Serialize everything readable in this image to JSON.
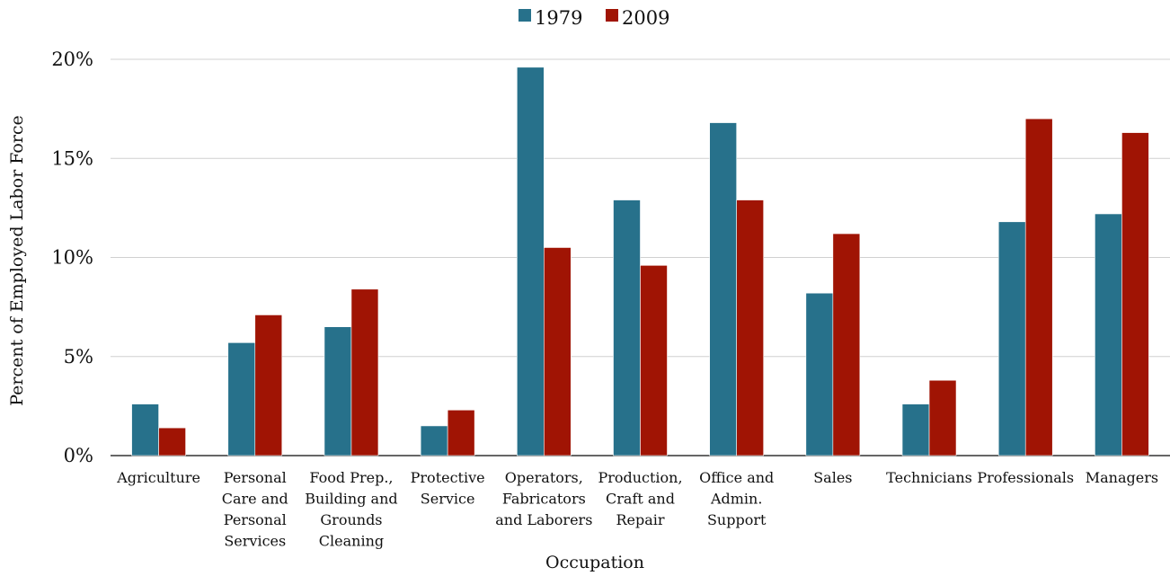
{
  "chart_data": {
    "type": "bar",
    "title": "",
    "xlabel": "Occupation",
    "ylabel": "Percent of  Employed Labor Force",
    "ylim": [
      0,
      20
    ],
    "yticks": [
      0,
      5,
      10,
      15,
      20
    ],
    "ytick_labels": [
      "0%",
      "5%",
      "10%",
      "15%",
      "20%"
    ],
    "grid": true,
    "legend_position": "top-center",
    "categories": [
      [
        "Agriculture"
      ],
      [
        "Personal",
        "Care and",
        "Personal",
        "Services"
      ],
      [
        "Food Prep.,",
        "Building and",
        "Grounds",
        "Cleaning"
      ],
      [
        "Protective",
        "Service"
      ],
      [
        "Operators,",
        "Fabricators",
        "and Laborers"
      ],
      [
        "Production,",
        "Craft and",
        "Repair"
      ],
      [
        "Office and",
        "Admin.",
        "Support"
      ],
      [
        "Sales"
      ],
      [
        "Technicians"
      ],
      [
        "Professionals"
      ],
      [
        "Managers"
      ]
    ],
    "series": [
      {
        "name": "1979",
        "color": "#27718b",
        "values": [
          2.6,
          5.7,
          6.5,
          1.5,
          19.6,
          12.9,
          16.8,
          8.2,
          2.6,
          11.8,
          12.2
        ]
      },
      {
        "name": "2009",
        "color": "#a01404",
        "values": [
          1.4,
          7.1,
          8.4,
          2.3,
          10.5,
          9.6,
          12.9,
          11.2,
          3.8,
          17.0,
          16.3
        ]
      }
    ]
  }
}
